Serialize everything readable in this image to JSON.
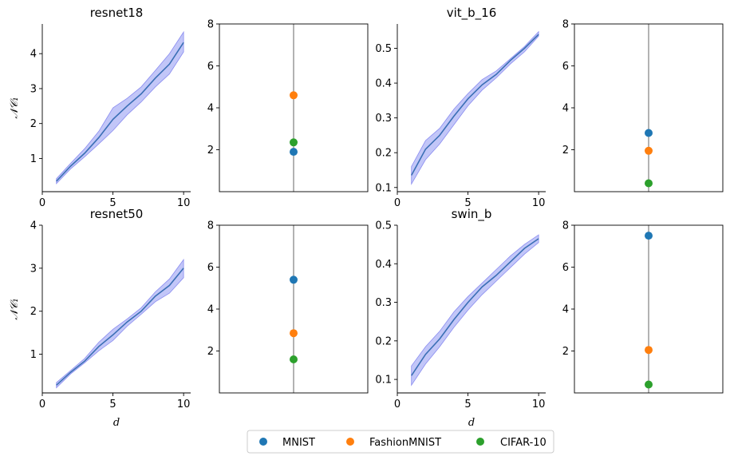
{
  "colors": {
    "mean_line": "#3a6fb5",
    "band_fill": "#aeb3f5",
    "band_edge": "#8a8cf0",
    "MNIST": "#1f77b4",
    "FashionMNIST": "#ff7f0e",
    "CIFAR-10": "#2ca02c"
  },
  "legend": {
    "entries": [
      {
        "name": "MNIST",
        "color_key": "MNIST"
      },
      {
        "name": "FashionMNIST",
        "color_key": "FashionMNIST"
      },
      {
        "name": "CIFAR-10",
        "color_key": "CIFAR-10"
      }
    ]
  },
  "chart_data": [
    {
      "type": "line",
      "title": "resnet18",
      "xlabel": "",
      "ylabel": "𝒩𝒞₁",
      "xlim": [
        0,
        10.5
      ],
      "ylim": [
        0.05,
        4.85
      ],
      "xticks": [
        0,
        5,
        10
      ],
      "yticks": [
        1,
        2,
        3,
        4
      ],
      "x": [
        1,
        2,
        3,
        4,
        5,
        6,
        7,
        8,
        9,
        10
      ],
      "mean": [
        0.35,
        0.78,
        1.15,
        1.6,
        2.12,
        2.5,
        2.85,
        3.3,
        3.7,
        4.32
      ],
      "lower": [
        0.28,
        0.7,
        1.05,
        1.42,
        1.8,
        2.25,
        2.62,
        3.05,
        3.42,
        4.05
      ],
      "upper": [
        0.42,
        0.86,
        1.28,
        1.78,
        2.45,
        2.72,
        3.05,
        3.52,
        4.0,
        4.62
      ]
    },
    {
      "type": "scatter",
      "title": "",
      "ylim": [
        0,
        8
      ],
      "yticks": [
        2,
        4,
        6,
        8
      ],
      "points": [
        {
          "name": "MNIST",
          "value": 1.9
        },
        {
          "name": "FashionMNIST",
          "value": 4.6
        },
        {
          "name": "CIFAR-10",
          "value": 2.35
        }
      ]
    },
    {
      "type": "line",
      "title": "vit_b_16",
      "xlabel": "",
      "ylabel": "",
      "xlim": [
        0,
        10.5
      ],
      "ylim": [
        0.088,
        0.57
      ],
      "xticks": [
        0,
        5,
        10
      ],
      "yticks": [
        0.1,
        0.2,
        0.3,
        0.4,
        0.5
      ],
      "x": [
        1,
        2,
        3,
        4,
        5,
        6,
        7,
        8,
        9,
        10
      ],
      "mean": [
        0.135,
        0.21,
        0.25,
        0.305,
        0.355,
        0.395,
        0.425,
        0.465,
        0.5,
        0.54
      ],
      "lower": [
        0.11,
        0.18,
        0.225,
        0.28,
        0.335,
        0.38,
        0.415,
        0.455,
        0.49,
        0.535
      ],
      "upper": [
        0.16,
        0.235,
        0.27,
        0.325,
        0.37,
        0.41,
        0.435,
        0.47,
        0.505,
        0.548
      ]
    },
    {
      "type": "scatter",
      "title": "",
      "ylim": [
        0,
        8
      ],
      "yticks": [
        2,
        4,
        6,
        8
      ],
      "points": [
        {
          "name": "MNIST",
          "value": 2.8
        },
        {
          "name": "FashionMNIST",
          "value": 1.95
        },
        {
          "name": "CIFAR-10",
          "value": 0.4
        }
      ]
    },
    {
      "type": "line",
      "title": "resnet50",
      "xlabel": "d",
      "ylabel": "𝒩𝒞₁",
      "xlim": [
        0,
        10.5
      ],
      "ylim": [
        0.1,
        4.0
      ],
      "xticks": [
        0,
        5,
        10
      ],
      "yticks": [
        1,
        2,
        3,
        4
      ],
      "x": [
        1,
        2,
        3,
        4,
        5,
        6,
        7,
        8,
        9,
        10
      ],
      "mean": [
        0.28,
        0.58,
        0.84,
        1.18,
        1.45,
        1.75,
        2.0,
        2.35,
        2.6,
        3.0
      ],
      "lower": [
        0.22,
        0.54,
        0.8,
        1.08,
        1.32,
        1.65,
        1.93,
        2.22,
        2.42,
        2.78
      ],
      "upper": [
        0.34,
        0.62,
        0.9,
        1.28,
        1.58,
        1.82,
        2.08,
        2.45,
        2.75,
        3.2
      ]
    },
    {
      "type": "scatter",
      "title": "",
      "ylim": [
        0,
        8
      ],
      "yticks": [
        2,
        4,
        6,
        8
      ],
      "points": [
        {
          "name": "MNIST",
          "value": 5.4
        },
        {
          "name": "FashionMNIST",
          "value": 2.85
        },
        {
          "name": "CIFAR-10",
          "value": 1.6
        }
      ]
    },
    {
      "type": "line",
      "title": "swin_b",
      "xlabel": "d",
      "ylabel": "",
      "xlim": [
        0,
        10.5
      ],
      "ylim": [
        0.065,
        0.5
      ],
      "xticks": [
        0,
        5,
        10
      ],
      "yticks": [
        0.1,
        0.2,
        0.3,
        0.4,
        0.5
      ],
      "x": [
        1,
        2,
        3,
        4,
        5,
        6,
        7,
        8,
        9,
        10
      ],
      "mean": [
        0.11,
        0.165,
        0.205,
        0.255,
        0.3,
        0.34,
        0.37,
        0.405,
        0.44,
        0.465
      ],
      "lower": [
        0.085,
        0.14,
        0.185,
        0.235,
        0.28,
        0.32,
        0.355,
        0.39,
        0.425,
        0.455
      ],
      "upper": [
        0.135,
        0.185,
        0.225,
        0.275,
        0.315,
        0.35,
        0.385,
        0.42,
        0.45,
        0.475
      ]
    },
    {
      "type": "scatter",
      "title": "",
      "ylim": [
        0,
        8
      ],
      "yticks": [
        2,
        4,
        6,
        8
      ],
      "points": [
        {
          "name": "MNIST",
          "value": 7.5
        },
        {
          "name": "FashionMNIST",
          "value": 2.05
        },
        {
          "name": "CIFAR-10",
          "value": 0.4
        }
      ]
    }
  ]
}
